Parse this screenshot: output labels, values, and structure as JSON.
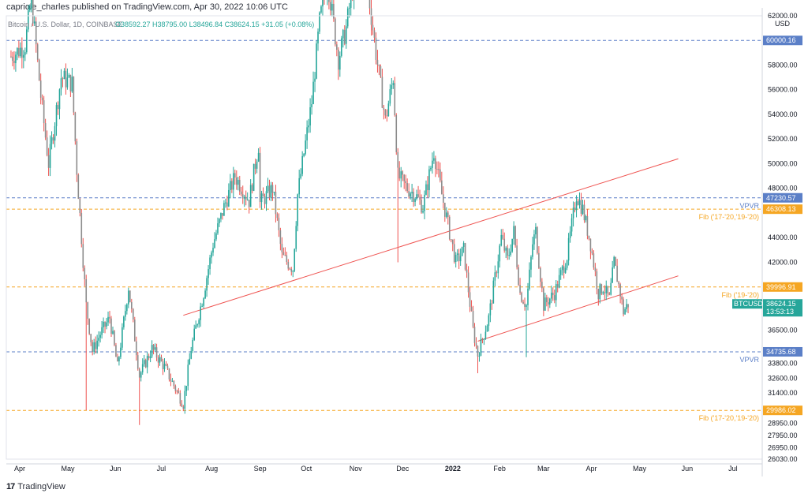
{
  "header": {
    "publisher": "capriole_charles published on TradingView.com, Apr 30, 2022 10:06 UTC"
  },
  "legend": {
    "symbol_text": "Bitcoin / U.S. Dollar, 1D, COINBASE",
    "ohlc_text": "O38592.27  H38795.00  L38496.84  C38624.15  +31.05 (+0.08%)"
  },
  "footer": {
    "brand": "TradingView",
    "logo_glyph": "17"
  },
  "colors": {
    "up": "#26a69a",
    "down": "#ef5350",
    "body_down": "#8c8c8c",
    "blue_level": "#5b7fc7",
    "orange_level": "#f5a623",
    "trend": "#ef5350",
    "price_badge": "#26a69a"
  },
  "chart_data": {
    "type": "candlestick",
    "symbol": "BTCUSD",
    "exchange": "COINBASE",
    "timeframe": "1D",
    "currency": "USD",
    "x_labels": [
      "Apr",
      "May",
      "Jun",
      "Jul",
      "Aug",
      "Sep",
      "Oct",
      "Nov",
      "Dec",
      "2022",
      "Feb",
      "Mar",
      "Apr",
      "May",
      "Jun",
      "Jul"
    ],
    "y_ticks": [
      "62000.00",
      "58000.00",
      "56000.00",
      "54000.00",
      "52000.00",
      "50000.00",
      "48000.00",
      "44000.00",
      "42000.00",
      "36500.00",
      "33800.00",
      "32600.00",
      "31400.00",
      "28950.00",
      "27950.00",
      "26950.00",
      "26030.00"
    ],
    "y_tick_values": [
      62000,
      58000,
      56000,
      54000,
      52000,
      50000,
      48000,
      44000,
      42000,
      36500,
      33800,
      32600,
      31400,
      28950,
      27950,
      26950,
      26030
    ],
    "ylim": [
      26030,
      62000
    ],
    "price_levels": [
      {
        "badge": "60000.16",
        "price": 60000.16,
        "kind": "blue",
        "label": ""
      },
      {
        "badge": "47230.57",
        "price": 47230.57,
        "kind": "blue",
        "label": "VPVR"
      },
      {
        "badge": "46308.13",
        "price": 46308.13,
        "kind": "orange",
        "label": "Fib ('17-'20,'19-'20)"
      },
      {
        "badge": "39996.91",
        "price": 39996.91,
        "kind": "orange",
        "label": "Fib ('19-'20)"
      },
      {
        "badge": "34735.68",
        "price": 34735.68,
        "kind": "blue",
        "label": "VPVR"
      },
      {
        "badge": "29986.02",
        "price": 29986.02,
        "kind": "orange",
        "label": "Fib ('17-'20,'19-'20)"
      }
    ],
    "current_price": {
      "symbol": "BTCUSD",
      "price": "38624.15",
      "countdown": "13:53:13",
      "value": 38624.15
    },
    "unit_tag": "USD",
    "trend_lines": [
      {
        "from": {
          "date": "2021-07-20",
          "price": 37700
        },
        "to": {
          "date": "2022-06-01",
          "price": 50400
        }
      },
      {
        "from": {
          "date": "2022-01-24",
          "price": 35600
        },
        "to": {
          "date": "2022-06-01",
          "price": 40900
        }
      }
    ],
    "price_path": [
      {
        "date": "2021-04-01",
        "price": 58700
      },
      {
        "date": "2021-04-10",
        "price": 59600
      },
      {
        "date": "2021-04-14",
        "price": 63500
      },
      {
        "date": "2021-04-20",
        "price": 55500
      },
      {
        "date": "2021-04-25",
        "price": 50000
      },
      {
        "date": "2021-05-03",
        "price": 57000
      },
      {
        "date": "2021-05-10",
        "price": 56500
      },
      {
        "date": "2021-05-13",
        "price": 49500
      },
      {
        "date": "2021-05-19",
        "price": 38500
      },
      {
        "date": "2021-05-23",
        "price": 34800
      },
      {
        "date": "2021-05-28",
        "price": 36200
      },
      {
        "date": "2021-06-03",
        "price": 37500
      },
      {
        "date": "2021-06-08",
        "price": 33500
      },
      {
        "date": "2021-06-15",
        "price": 40000
      },
      {
        "date": "2021-06-22",
        "price": 32800
      },
      {
        "date": "2021-06-30",
        "price": 35000
      },
      {
        "date": "2021-07-08",
        "price": 33500
      },
      {
        "date": "2021-07-20",
        "price": 30500
      },
      {
        "date": "2021-07-25",
        "price": 35000
      },
      {
        "date": "2021-08-02",
        "price": 39500
      },
      {
        "date": "2021-08-08",
        "price": 43500
      },
      {
        "date": "2021-08-15",
        "price": 46500
      },
      {
        "date": "2021-08-22",
        "price": 49000
      },
      {
        "date": "2021-08-31",
        "price": 47000
      },
      {
        "date": "2021-09-06",
        "price": 51500
      },
      {
        "date": "2021-09-07",
        "price": 46800
      },
      {
        "date": "2021-09-15",
        "price": 48000
      },
      {
        "date": "2021-09-21",
        "price": 42500
      },
      {
        "date": "2021-09-28",
        "price": 41500
      },
      {
        "date": "2021-10-01",
        "price": 47500
      },
      {
        "date": "2021-10-10",
        "price": 55000
      },
      {
        "date": "2021-10-15",
        "price": 61500
      },
      {
        "date": "2021-10-20",
        "price": 65000
      },
      {
        "date": "2021-10-27",
        "price": 58500
      },
      {
        "date": "2021-11-01",
        "price": 61000
      },
      {
        "date": "2021-11-09",
        "price": 67500
      },
      {
        "date": "2021-11-15",
        "price": 64000
      },
      {
        "date": "2021-11-20",
        "price": 59000
      },
      {
        "date": "2021-11-26",
        "price": 53500
      },
      {
        "date": "2021-12-01",
        "price": 57000
      },
      {
        "date": "2021-12-04",
        "price": 49000
      },
      {
        "date": "2021-12-10",
        "price": 48000
      },
      {
        "date": "2021-12-15",
        "price": 47500
      },
      {
        "date": "2021-12-20",
        "price": 46500
      },
      {
        "date": "2021-12-27",
        "price": 51000
      },
      {
        "date": "2022-01-01",
        "price": 47500
      },
      {
        "date": "2022-01-10",
        "price": 42000
      },
      {
        "date": "2022-01-15",
        "price": 43000
      },
      {
        "date": "2022-01-21",
        "price": 36500
      },
      {
        "date": "2022-01-24",
        "price": 34500
      },
      {
        "date": "2022-01-31",
        "price": 37500
      },
      {
        "date": "2022-02-08",
        "price": 44000
      },
      {
        "date": "2022-02-12",
        "price": 42200
      },
      {
        "date": "2022-02-16",
        "price": 44500
      },
      {
        "date": "2022-02-20",
        "price": 39500
      },
      {
        "date": "2022-02-24",
        "price": 38500
      },
      {
        "date": "2022-02-28",
        "price": 43500
      },
      {
        "date": "2022-03-02",
        "price": 44500
      },
      {
        "date": "2022-03-07",
        "price": 38500
      },
      {
        "date": "2022-03-14",
        "price": 39500
      },
      {
        "date": "2022-03-22",
        "price": 42500
      },
      {
        "date": "2022-03-28",
        "price": 47500
      },
      {
        "date": "2022-04-01",
        "price": 46300
      },
      {
        "date": "2022-04-06",
        "price": 43500
      },
      {
        "date": "2022-04-11",
        "price": 39500
      },
      {
        "date": "2022-04-14",
        "price": 40000
      },
      {
        "date": "2022-04-18",
        "price": 39000
      },
      {
        "date": "2022-04-21",
        "price": 42000
      },
      {
        "date": "2022-04-25",
        "price": 39500
      },
      {
        "date": "2022-04-27",
        "price": 38000
      },
      {
        "date": "2022-04-30",
        "price": 38624
      }
    ],
    "wick_spikes": [
      {
        "date": "2021-05-19",
        "low": 30000
      },
      {
        "date": "2021-06-22",
        "low": 28800
      },
      {
        "date": "2021-12-04",
        "low": 42000
      },
      {
        "date": "2022-01-24",
        "low": 33000
      },
      {
        "date": "2022-02-24",
        "low": 34300
      }
    ]
  }
}
